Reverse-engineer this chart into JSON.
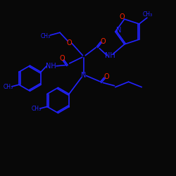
{
  "background": "#080808",
  "bond_color": "#2222ff",
  "O_color": "#ff2200",
  "N_color": "#2222ff",
  "lw": 1.2,
  "fs": 6.5,
  "xlim": [
    0,
    10
  ],
  "ylim": [
    0,
    10
  ]
}
